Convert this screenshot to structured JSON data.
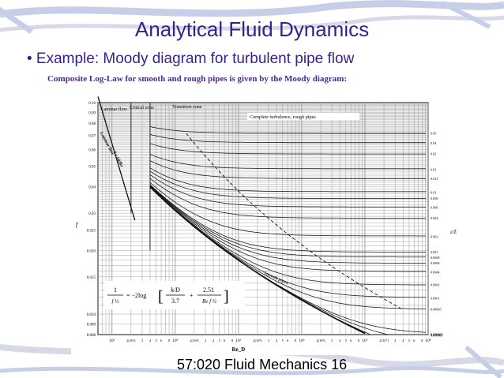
{
  "slide": {
    "title": "Analytical Fluid Dynamics",
    "bullet": "• Example: Moody diagram for turbulent pipe flow",
    "caption": "Composite Log-Law for smooth and rough pipes is given by the Moody diagram:",
    "footer": "57:020 Fluid Mechanics  16"
  },
  "colors": {
    "title": "#3a1f8c",
    "deco_blue": "#c7cfe6",
    "deco_gray": "#d7dae6",
    "grid": "#9a9a9a",
    "curve": "#111111"
  },
  "chart_data": {
    "type": "line",
    "scale": "log-log",
    "xlim": [
      600,
      100000000
    ],
    "ylim": [
      0.008,
      0.1
    ],
    "y_ticks": [
      0.1,
      0.09,
      0.08,
      0.07,
      0.06,
      0.05,
      0.04,
      0.03,
      0.025,
      0.02,
      0.015,
      0.01,
      0.009,
      0.008
    ],
    "y_tick_labels": [
      "0.10",
      "0.09",
      "0.08",
      "0.07",
      "0.06",
      "0.05",
      "0.04",
      "0.03",
      "0.025",
      "0.020",
      "0.015",
      "0.010",
      "0.009",
      "0.008"
    ],
    "x_decade_labels": [
      "10³",
      "10⁴",
      "10⁵",
      "10⁶",
      "10⁷",
      "10⁸"
    ],
    "x_minor_labels": [
      "2(10³)",
      "3",
      "4",
      "5",
      "6",
      "8",
      "2(10⁴)",
      "3",
      "4",
      "5",
      "6",
      "8",
      "2(10⁵)",
      "3",
      "4",
      "5",
      "6",
      "8",
      "2(10⁶)",
      "3",
      "4",
      "5",
      "6",
      "8",
      "2(10⁷)",
      "3",
      "4",
      "5",
      "6",
      "8"
    ],
    "xlabel": "Re_D",
    "ylabel": "f",
    "right_axis_label": "ε/D",
    "right_ticks": [
      0.05,
      0.04,
      0.03,
      0.02,
      0.015,
      0.01,
      0.008,
      0.006,
      0.004,
      0.002,
      0.001,
      0.0008,
      0.0006,
      0.0004,
      0.0002,
      0.0001,
      5e-05,
      1e-05,
      5e-06,
      1e-06
    ],
    "right_tick_labels": [
      "0.05",
      "0.04",
      "0.03",
      "0.02",
      "0.015",
      "0.01",
      "0.008",
      "0.006",
      "0.004",
      "0.002",
      "0.001",
      "0.0008",
      "0.0006",
      "0.0004",
      "0.0002",
      "0.0001",
      "0.00005",
      "0.00001",
      "0.000005",
      "0.000001"
    ],
    "relative_roughness_series": [
      0.05,
      0.04,
      0.03,
      0.02,
      0.015,
      0.01,
      0.008,
      0.006,
      0.004,
      0.002,
      0.001,
      0.0008,
      0.0006,
      0.0004,
      0.0002,
      0.0001,
      5e-05,
      1e-05,
      5e-06,
      1e-06
    ],
    "laminar_line": {
      "x": [
        600,
        2300
      ],
      "y": [
        0.1067,
        0.0278
      ]
    },
    "zone_labels": {
      "laminar": "Laminar flow",
      "critical": "Critical zone",
      "transition": "Transition zone",
      "complete": "Complete turbulence, rough pipes",
      "smooth": "Smooth pipes",
      "laminar_curve": "Laminar flow",
      "laminar_eq": "f = 64/Re"
    },
    "formula": {
      "lhs_num": "1",
      "lhs_den": "f ½",
      "op": "= −2log",
      "t1_num": "k/D",
      "t1_den": "3.7",
      "plus": "+",
      "t2_num": "2.51",
      "t2_den": "Re f ½"
    }
  }
}
